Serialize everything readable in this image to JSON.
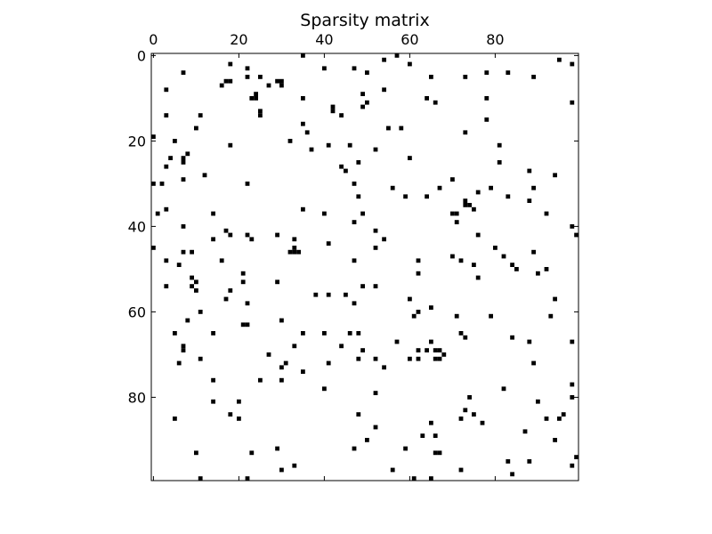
{
  "chart_data": {
    "type": "heatmap",
    "title": "Sparsity matrix",
    "xlabel": "",
    "ylabel": "",
    "matrix_size": [
      100,
      100
    ],
    "xlim": [
      -0.5,
      99.5
    ],
    "ylim": [
      99.5,
      -0.5
    ],
    "x_axis_position": "top",
    "x_ticks": [
      0,
      20,
      40,
      60,
      80
    ],
    "y_ticks": [
      0,
      20,
      40,
      60,
      80
    ],
    "grid": false,
    "marker_color": "#000000",
    "background_color": "#ffffff",
    "nonzero_entries": [
      [
        0,
        35
      ],
      [
        0,
        57
      ],
      [
        1,
        54
      ],
      [
        1,
        95
      ],
      [
        2,
        18
      ],
      [
        2,
        60
      ],
      [
        2,
        98
      ],
      [
        3,
        22
      ],
      [
        3,
        40
      ],
      [
        3,
        47
      ],
      [
        4,
        7
      ],
      [
        4,
        50
      ],
      [
        4,
        78
      ],
      [
        4,
        83
      ],
      [
        5,
        22
      ],
      [
        5,
        25
      ],
      [
        5,
        65
      ],
      [
        5,
        73
      ],
      [
        5,
        89
      ],
      [
        6,
        17
      ],
      [
        6,
        18
      ],
      [
        6,
        29
      ],
      [
        6,
        30
      ],
      [
        7,
        16
      ],
      [
        7,
        27
      ],
      [
        7,
        30
      ],
      [
        8,
        3
      ],
      [
        8,
        54
      ],
      [
        9,
        24
      ],
      [
        9,
        49
      ],
      [
        10,
        23
      ],
      [
        10,
        24
      ],
      [
        10,
        35
      ],
      [
        10,
        64
      ],
      [
        10,
        78
      ],
      [
        11,
        50
      ],
      [
        11,
        66
      ],
      [
        11,
        98
      ],
      [
        12,
        42
      ],
      [
        12,
        49
      ],
      [
        13,
        42
      ],
      [
        13,
        25
      ],
      [
        14,
        3
      ],
      [
        14,
        11
      ],
      [
        14,
        44
      ],
      [
        14,
        25
      ],
      [
        15,
        78
      ],
      [
        16,
        35
      ],
      [
        17,
        10
      ],
      [
        17,
        55
      ],
      [
        17,
        58
      ],
      [
        18,
        36
      ],
      [
        18,
        73
      ],
      [
        19,
        0
      ],
      [
        20,
        5
      ],
      [
        20,
        32
      ],
      [
        21,
        18
      ],
      [
        21,
        41
      ],
      [
        21,
        46
      ],
      [
        21,
        81
      ],
      [
        22,
        37
      ],
      [
        22,
        52
      ],
      [
        23,
        8
      ],
      [
        24,
        4
      ],
      [
        24,
        7
      ],
      [
        24,
        60
      ],
      [
        25,
        7
      ],
      [
        25,
        48
      ],
      [
        25,
        81
      ],
      [
        26,
        3
      ],
      [
        26,
        44
      ],
      [
        27,
        45
      ],
      [
        27,
        88
      ],
      [
        28,
        12
      ],
      [
        28,
        94
      ],
      [
        29,
        7
      ],
      [
        29,
        70
      ],
      [
        30,
        0
      ],
      [
        30,
        2
      ],
      [
        30,
        22
      ],
      [
        30,
        47
      ],
      [
        31,
        56
      ],
      [
        31,
        67
      ],
      [
        31,
        79
      ],
      [
        31,
        89
      ],
      [
        32,
        76
      ],
      [
        33,
        48
      ],
      [
        33,
        59
      ],
      [
        33,
        64
      ],
      [
        33,
        83
      ],
      [
        34,
        73
      ],
      [
        34,
        88
      ],
      [
        35,
        73
      ],
      [
        35,
        74
      ],
      [
        36,
        3
      ],
      [
        36,
        35
      ],
      [
        36,
        75
      ],
      [
        37,
        1
      ],
      [
        37,
        14
      ],
      [
        37,
        40
      ],
      [
        37,
        49
      ],
      [
        37,
        70
      ],
      [
        37,
        71
      ],
      [
        37,
        92
      ],
      [
        39,
        47
      ],
      [
        39,
        71
      ],
      [
        40,
        7
      ],
      [
        40,
        98
      ],
      [
        41,
        17
      ],
      [
        41,
        52
      ],
      [
        42,
        18
      ],
      [
        42,
        22
      ],
      [
        42,
        29
      ],
      [
        42,
        76
      ],
      [
        42,
        99
      ],
      [
        43,
        14
      ],
      [
        43,
        23
      ],
      [
        43,
        33
      ],
      [
        43,
        54
      ],
      [
        44,
        41
      ],
      [
        45,
        0
      ],
      [
        45,
        33
      ],
      [
        45,
        52
      ],
      [
        45,
        80
      ],
      [
        46,
        7
      ],
      [
        46,
        9
      ],
      [
        46,
        32
      ],
      [
        46,
        33
      ],
      [
        46,
        34
      ],
      [
        46,
        89
      ],
      [
        47,
        70
      ],
      [
        47,
        82
      ],
      [
        48,
        3
      ],
      [
        48,
        16
      ],
      [
        48,
        47
      ],
      [
        48,
        62
      ],
      [
        48,
        72
      ],
      [
        49,
        6
      ],
      [
        49,
        75
      ],
      [
        49,
        84
      ],
      [
        50,
        85
      ],
      [
        50,
        92
      ],
      [
        51,
        21
      ],
      [
        51,
        62
      ],
      [
        51,
        90
      ],
      [
        52,
        9
      ],
      [
        52,
        76
      ],
      [
        53,
        10
      ],
      [
        53,
        21
      ],
      [
        53,
        29
      ],
      [
        54,
        3
      ],
      [
        54,
        9
      ],
      [
        54,
        49
      ],
      [
        54,
        52
      ],
      [
        55,
        10
      ],
      [
        55,
        18
      ],
      [
        56,
        38
      ],
      [
        56,
        41
      ],
      [
        56,
        45
      ],
      [
        57,
        17
      ],
      [
        57,
        60
      ],
      [
        57,
        94
      ],
      [
        58,
        22
      ],
      [
        58,
        47
      ],
      [
        59,
        65
      ],
      [
        60,
        11
      ],
      [
        60,
        62
      ],
      [
        61,
        61
      ],
      [
        61,
        71
      ],
      [
        61,
        79
      ],
      [
        61,
        93
      ],
      [
        62,
        8
      ],
      [
        62,
        30
      ],
      [
        63,
        21
      ],
      [
        63,
        22
      ],
      [
        65,
        5
      ],
      [
        65,
        14
      ],
      [
        65,
        35
      ],
      [
        65,
        40
      ],
      [
        65,
        46
      ],
      [
        65,
        48
      ],
      [
        65,
        72
      ],
      [
        66,
        73
      ],
      [
        66,
        84
      ],
      [
        67,
        57
      ],
      [
        67,
        65
      ],
      [
        67,
        88
      ],
      [
        67,
        98
      ],
      [
        68,
        7
      ],
      [
        68,
        33
      ],
      [
        68,
        44
      ],
      [
        69,
        7
      ],
      [
        69,
        49
      ],
      [
        69,
        62
      ],
      [
        69,
        64
      ],
      [
        69,
        66
      ],
      [
        69,
        67
      ],
      [
        70,
        27
      ],
      [
        70,
        68
      ],
      [
        71,
        11
      ],
      [
        71,
        48
      ],
      [
        71,
        52
      ],
      [
        71,
        60
      ],
      [
        71,
        62
      ],
      [
        71,
        66
      ],
      [
        71,
        67
      ],
      [
        72,
        6
      ],
      [
        72,
        31
      ],
      [
        72,
        41
      ],
      [
        72,
        89
      ],
      [
        73,
        30
      ],
      [
        73,
        54
      ],
      [
        74,
        35
      ],
      [
        76,
        14
      ],
      [
        76,
        25
      ],
      [
        76,
        30
      ],
      [
        77,
        98
      ],
      [
        78,
        40
      ],
      [
        78,
        82
      ],
      [
        79,
        52
      ],
      [
        80,
        74
      ],
      [
        80,
        98
      ],
      [
        81,
        14
      ],
      [
        81,
        20
      ],
      [
        81,
        90
      ],
      [
        83,
        73
      ],
      [
        84,
        18
      ],
      [
        84,
        48
      ],
      [
        84,
        75
      ],
      [
        84,
        96
      ],
      [
        85,
        5
      ],
      [
        85,
        20
      ],
      [
        85,
        72
      ],
      [
        85,
        92
      ],
      [
        85,
        95
      ],
      [
        86,
        65
      ],
      [
        86,
        77
      ],
      [
        87,
        52
      ],
      [
        88,
        87
      ],
      [
        89,
        63
      ],
      [
        89,
        66
      ],
      [
        90,
        50
      ],
      [
        90,
        94
      ],
      [
        92,
        29
      ],
      [
        92,
        47
      ],
      [
        92,
        59
      ],
      [
        93,
        10
      ],
      [
        93,
        23
      ],
      [
        93,
        66
      ],
      [
        93,
        67
      ],
      [
        94,
        99
      ],
      [
        95,
        83
      ],
      [
        95,
        88
      ],
      [
        96,
        33
      ],
      [
        96,
        98
      ],
      [
        97,
        30
      ],
      [
        97,
        56
      ],
      [
        97,
        72
      ],
      [
        98,
        84
      ],
      [
        99,
        11
      ],
      [
        99,
        22
      ],
      [
        99,
        61
      ],
      [
        99,
        65
      ]
    ]
  }
}
